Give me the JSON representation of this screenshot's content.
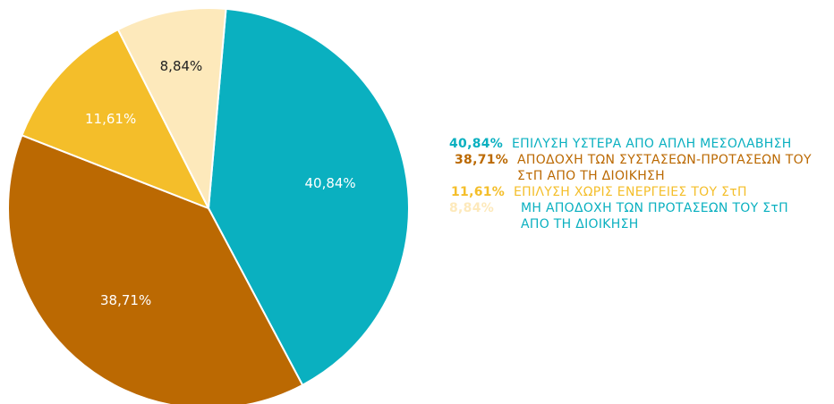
{
  "chart_data": {
    "type": "pie",
    "slices": [
      {
        "label": "ΕΠΙΛΥΣΗ ΥΣΤΕΡΑ ΑΠΟ ΑΠΛΗ ΜΕΣΟΛΑΒΗΣΗ",
        "value": 40.84,
        "value_label": "40,84%",
        "color": "#0ab0c0",
        "label_color": "#ffffff"
      },
      {
        "label": "ΑΠΟΔΟΧΗ ΤΩΝ ΣΥΣΤΑΣΕΩΝ-ΠΡΟΤΑΣΕΩΝ ΤΟΥ ΣτΠ ΑΠΟ ΤΗ ΔΙΟΙΚΗΣΗ",
        "value": 38.71,
        "value_label": "38,71%",
        "color": "#bb6902",
        "label_color": "#ffffff"
      },
      {
        "label": "ΕΠΙΛΥΣΗ ΧΩΡΙΣ ΕΝΕΡΓΕΙΕΣ ΤΟΥ ΣτΠ",
        "value": 11.61,
        "value_label": "11,61%",
        "color": "#f4be2a",
        "label_color": "#ffffff"
      },
      {
        "label": "ΜΗ ΑΠΟΔΟΧΗ ΤΩΝ ΠΡΟΤΑΣΕΩΝ ΤΟΥ ΣτΠ ΑΠΟ ΤΗ ΔΙΟΙΚΗΣΗ",
        "value": 8.84,
        "value_label": "8,84%",
        "color": "#fde9bb",
        "label_color": "#222222"
      }
    ],
    "legend": {
      "placement": "right",
      "entries": [
        {
          "value": "40,84%",
          "value_color": "#0ab0c0",
          "text": "ΕΠΙΛΥΣΗ ΥΣΤΕΡΑ ΑΠΟ ΑΠΛΗ ΜΕΣΟΛΑΒΗΣΗ",
          "text_color": "#0ab0c0"
        },
        {
          "value": "38,71%",
          "value_color": "#bb6902",
          "text": "ΑΠΟΔΟΧΗ ΤΩΝ ΣΥΣΤΑΣΕΩΝ-ΠΡΟΤΑΣΕΩΝ ΤΟΥ ΣτΠ ΑΠΟ ΤΗ ΔΙΟΙΚΗΣΗ",
          "text_color": "#bb6902"
        },
        {
          "value": "11,61%",
          "value_color": "#f4be2a",
          "text": "ΕΠΙΛΥΣΗ ΧΩΡΙΣ ΕΝΕΡΓΕΙΕΣ ΤΟΥ ΣτΠ",
          "text_color": "#f4be2a"
        },
        {
          "value": "8,84%",
          "value_color": "#fde9bb",
          "text": "ΜΗ ΑΠΟΔΟΧΗ ΤΩΝ ΠΡΟΤΑΣΕΩΝ ΤΟΥ ΣτΠ ΑΠΟ ΤΗ ΔΙΟΙΚΗΣΗ",
          "text_color": "#0ab0c0"
        }
      ]
    }
  }
}
